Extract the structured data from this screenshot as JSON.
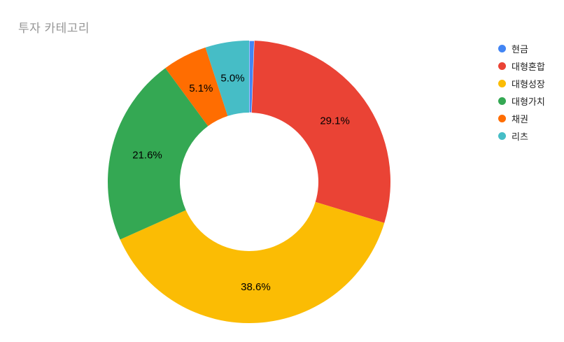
{
  "chart_data": {
    "type": "pie",
    "donut": true,
    "hole_ratio": 0.5,
    "title": "투자 카테고리",
    "legend_position": "right",
    "background_color": "#ffffff",
    "title_color": "#969696",
    "label_color": "#000000",
    "legend_text_color": "#222222",
    "slices": [
      {
        "label": "현금",
        "value": 0.6,
        "color": "#4285F4",
        "display_label": ""
      },
      {
        "label": "대형혼합",
        "value": 29.1,
        "color": "#EA4335",
        "display_label": "29.1%"
      },
      {
        "label": "대형성장",
        "value": 38.6,
        "color": "#FBBC04",
        "display_label": "38.6%"
      },
      {
        "label": "대형가치",
        "value": 21.6,
        "color": "#34A853",
        "display_label": "21.6%"
      },
      {
        "label": "채권",
        "value": 5.1,
        "color": "#FF6D01",
        "display_label": "5.1%"
      },
      {
        "label": "리츠",
        "value": 5.0,
        "color": "#46BDC6",
        "display_label": "5.0%"
      }
    ]
  }
}
